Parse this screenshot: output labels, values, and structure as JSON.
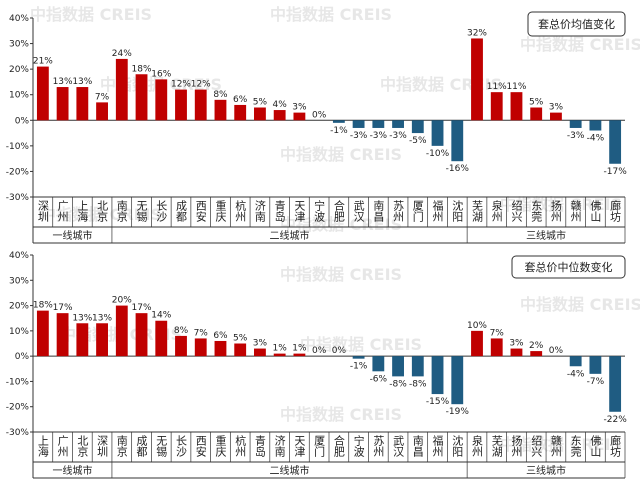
{
  "watermark": "中指数据 CREIS",
  "chart_data": [
    {
      "type": "bar",
      "name": "套总价均值变化",
      "ylim": [
        -30,
        40
      ],
      "yticks": [
        {
          "value": -30,
          "label": "-30%"
        },
        {
          "value": -20,
          "label": "-20%"
        },
        {
          "value": -10,
          "label": "-10%"
        },
        {
          "value": 0,
          "label": "0%"
        },
        {
          "value": 10,
          "label": "10%"
        },
        {
          "value": 20,
          "label": "20%"
        },
        {
          "value": 30,
          "label": "30%"
        },
        {
          "value": 40,
          "label": "40%"
        }
      ],
      "colors": {
        "positive": "#c00000",
        "negative": "#1f5c82"
      },
      "groups": [
        {
          "name": "一线城市",
          "categories": [
            "深圳",
            "广州",
            "上海",
            "北京"
          ],
          "values": [
            21,
            13,
            13,
            7
          ],
          "value_labels": [
            "21%",
            "13%",
            "13%",
            "7%"
          ]
        },
        {
          "name": "二线城市",
          "categories": [
            "南京",
            "无锡",
            "长沙",
            "成都",
            "西安",
            "重庆",
            "杭州",
            "济南",
            "青岛",
            "天津",
            "宁波",
            "合肥",
            "武汉",
            "南昌",
            "苏州",
            "厦门",
            "福州",
            "沈阳"
          ],
          "values": [
            24,
            18,
            16,
            12,
            12,
            8,
            6,
            5,
            4,
            3,
            0,
            -1,
            -3,
            -3,
            -3,
            -5,
            -10,
            -16
          ],
          "value_labels": [
            "24%",
            "18%",
            "16%",
            "12%",
            "12%",
            "8%",
            "6%",
            "5%",
            "4%",
            "3%",
            "0%",
            "-1%",
            "-3%",
            "-3%",
            "-3%",
            "-5%",
            "-10%",
            "-16%"
          ]
        },
        {
          "name": "三线城市",
          "categories": [
            "芜湖",
            "泉州",
            "绍兴",
            "东莞",
            "扬州",
            "赣州",
            "佛山",
            "廊坊"
          ],
          "values": [
            32,
            11,
            11,
            5,
            3,
            -3,
            -4,
            -17
          ],
          "value_labels": [
            "32%",
            "11%",
            "11%",
            "5%",
            "3%",
            "-3%",
            "-4%",
            "-17%"
          ]
        }
      ]
    },
    {
      "type": "bar",
      "name": "套总价中位数变化",
      "ylim": [
        -30,
        40
      ],
      "yticks": [
        {
          "value": -30,
          "label": "-30%"
        },
        {
          "value": -20,
          "label": "-20%"
        },
        {
          "value": -10,
          "label": "-10%"
        },
        {
          "value": 0,
          "label": "0%"
        },
        {
          "value": 10,
          "label": "10%"
        },
        {
          "value": 20,
          "label": "20%"
        },
        {
          "value": 30,
          "label": "30%"
        },
        {
          "value": 40,
          "label": "40%"
        }
      ],
      "colors": {
        "positive": "#c00000",
        "negative": "#1f5c82"
      },
      "groups": [
        {
          "name": "一线城市",
          "categories": [
            "上海",
            "广州",
            "北京",
            "深圳"
          ],
          "values": [
            18,
            17,
            13,
            13
          ],
          "value_labels": [
            "18%",
            "17%",
            "13%",
            "13%"
          ]
        },
        {
          "name": "二线城市",
          "categories": [
            "南京",
            "成都",
            "无锡",
            "长沙",
            "西安",
            "重庆",
            "杭州",
            "青岛",
            "济南",
            "天津",
            "厦门",
            "合肥",
            "宁波",
            "苏州",
            "武汉",
            "南昌",
            "福州",
            "沈阳"
          ],
          "values": [
            20,
            17,
            14,
            8,
            7,
            6,
            5,
            3,
            1,
            1,
            0,
            0,
            -1,
            -6,
            -8,
            -8,
            -15,
            -19
          ],
          "value_labels": [
            "20%",
            "17%",
            "14%",
            "8%",
            "7%",
            "6%",
            "5%",
            "3%",
            "1%",
            "1%",
            "0%",
            "0%",
            "-1%",
            "-6%",
            "-8%",
            "-8%",
            "-15%",
            "-19%"
          ]
        },
        {
          "name": "三线城市",
          "categories": [
            "泉州",
            "芜湖",
            "扬州",
            "绍兴",
            "赣州",
            "东莞",
            "佛山",
            "廊坊"
          ],
          "values": [
            10,
            7,
            3,
            2,
            0,
            -4,
            -7,
            -22
          ],
          "value_labels": [
            "10%",
            "7%",
            "3%",
            "2%",
            "0%",
            "-4%",
            "-7%",
            "-22%"
          ]
        }
      ]
    }
  ]
}
